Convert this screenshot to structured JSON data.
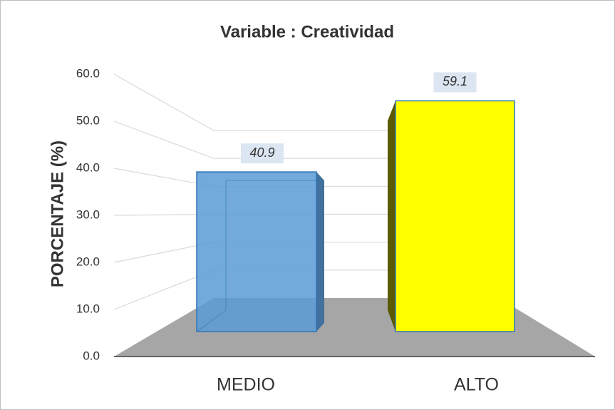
{
  "chart_data": {
    "type": "bar3d",
    "title": "Variable : Creatividad",
    "y_label": "PORCENTAJE (%)",
    "categories": [
      "MEDIO",
      "ALTO"
    ],
    "values": [
      40.9,
      59.1
    ],
    "colors": [
      "#5b9bd5",
      "#ffff00"
    ],
    "ylim": [
      0,
      60
    ],
    "yticks": [
      {
        "value": 0,
        "label": "0.0"
      },
      {
        "value": 10,
        "label": "10.0"
      },
      {
        "value": 20,
        "label": "20.0"
      },
      {
        "value": 30,
        "label": "30.0"
      },
      {
        "value": 40,
        "label": "40.0"
      },
      {
        "value": 50,
        "label": "50.0"
      },
      {
        "value": 60,
        "label": "60.0"
      }
    ],
    "grid": true
  }
}
